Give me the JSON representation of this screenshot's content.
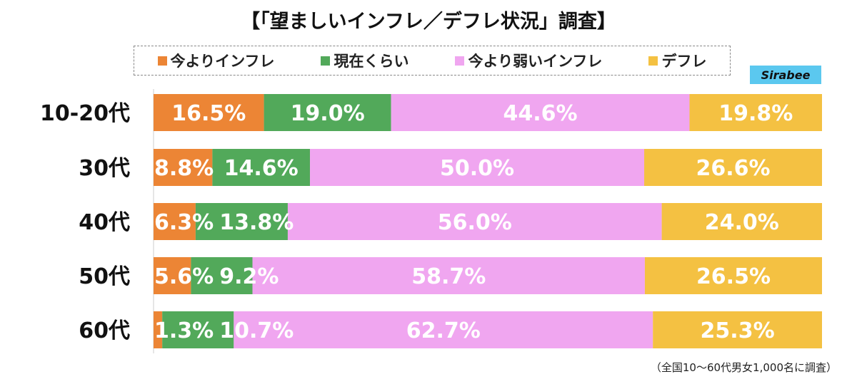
{
  "chart_data": {
    "type": "bar",
    "stacked": true,
    "orientation": "horizontal",
    "title": "【「望ましいインフレ／デフレ状況」調査】",
    "categories": [
      "10-20代",
      "30代",
      "40代",
      "50代",
      "60代"
    ],
    "series": [
      {
        "name": "今よりインフレ",
        "color": "#ec8535",
        "values": [
          16.5,
          8.8,
          6.3,
          5.6,
          1.3
        ]
      },
      {
        "name": "現在くらい",
        "color": "#52a95a",
        "values": [
          19.0,
          14.6,
          13.8,
          9.2,
          10.7
        ]
      },
      {
        "name": "今より弱いインフレ",
        "color": "#f0a6f0",
        "values": [
          44.6,
          50.0,
          56.0,
          58.7,
          62.7
        ]
      },
      {
        "name": "デフレ",
        "color": "#f4c142",
        "values": [
          19.8,
          26.6,
          24.0,
          26.5,
          25.3
        ]
      }
    ],
    "xlim": [
      0,
      100
    ],
    "legend": "top",
    "note": "（全国10〜60代男女1,000名に調査）"
  },
  "logo": "Sirabee"
}
